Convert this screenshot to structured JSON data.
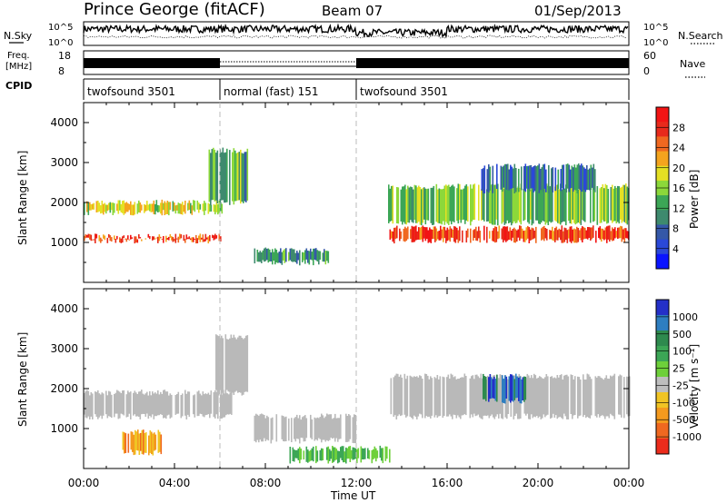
{
  "header": {
    "station": "Prince George (fitACF)",
    "beam": "Beam 07",
    "date": "01/Sep/2013"
  },
  "top_panels": {
    "nsky_label": "N.Sky",
    "nsky_ticks": [
      "10^5",
      "10^0"
    ],
    "nsearch_label": "N.Search",
    "nsearch_ticks": [
      "10^5",
      "10^0"
    ],
    "freq_label_line1": "Freq.",
    "freq_label_line2": "[MHz]",
    "freq_ticks": [
      "18",
      "8"
    ],
    "nave_label": "Nave",
    "nave_ticks": [
      "60",
      "0"
    ],
    "cpid_label": "CPID",
    "cpid_segments": [
      {
        "label": "twofsound 3501",
        "start_h": 0,
        "end_h": 6
      },
      {
        "label": "normal (fast) 151",
        "start_h": 6,
        "end_h": 12
      },
      {
        "label": "twofsound 3501",
        "start_h": 12,
        "end_h": 24
      }
    ]
  },
  "chart_data": [
    {
      "type": "heatmap",
      "name": "power",
      "ylabel": "Slant Range [km]",
      "ylim": [
        0,
        4500
      ],
      "yticks": [
        "1000",
        "2000",
        "3000",
        "4000"
      ],
      "colorbar_label": "Power [dB]",
      "colorbar_ticks": [
        "28",
        "24",
        "20",
        "16",
        "12",
        "8",
        "4"
      ],
      "colors": [
        "#0a14ff",
        "#2a48d8",
        "#3558a8",
        "#3e8a6e",
        "#3ca656",
        "#8cd83a",
        "#e4e024",
        "#f4a41e",
        "#f06820",
        "#e82a1c",
        "#f21414"
      ],
      "bands": [
        {
          "start_h": 0.0,
          "end_h": 6.1,
          "range_start_km": 1050,
          "range_end_km": 1150,
          "level": 26
        },
        {
          "start_h": 0.0,
          "end_h": 6.1,
          "range_start_km": 1750,
          "range_end_km": 2000,
          "level": 17
        },
        {
          "start_h": 5.5,
          "end_h": 7.2,
          "range_start_km": 2000,
          "range_end_km": 3300,
          "level": 12
        },
        {
          "start_h": 7.5,
          "end_h": 10.8,
          "range_start_km": 500,
          "range_end_km": 800,
          "level": 10
        },
        {
          "start_h": 13.4,
          "end_h": 24.0,
          "range_start_km": 1050,
          "range_end_km": 1350,
          "level": 26
        },
        {
          "start_h": 13.4,
          "end_h": 24.0,
          "range_start_km": 1500,
          "range_end_km": 2400,
          "level": 14
        },
        {
          "start_h": 17.5,
          "end_h": 22.5,
          "range_start_km": 2300,
          "range_end_km": 2900,
          "level": 8
        }
      ]
    },
    {
      "type": "heatmap",
      "name": "velocity",
      "ylabel": "Slant Range [km]",
      "ylim": [
        0,
        4500
      ],
      "yticks": [
        "1000",
        "2000",
        "3000",
        "4000"
      ],
      "xlabel": "Time UT",
      "xticks": [
        "00:00",
        "04:00",
        "08:00",
        "12:00",
        "16:00",
        "20:00",
        "00:00"
      ],
      "xlim_hours": [
        0,
        24
      ],
      "colorbar_label": "Velocity [m s⁻¹]",
      "colorbar_ticks": [
        "1000",
        "500",
        "100",
        "25",
        "-25",
        "-100",
        "-500",
        "-1000"
      ],
      "colors": [
        "#2430c8",
        "#2e7ec0",
        "#2e8a4e",
        "#3ca656",
        "#6ed03a",
        "#bebebe",
        "#f0c424",
        "#f49a1e",
        "#f06820",
        "#ec2c1c"
      ],
      "bands": [
        {
          "start_h": 0.0,
          "end_h": 6.5,
          "range_start_km": 1300,
          "range_end_km": 1900,
          "level": "ground"
        },
        {
          "start_h": 5.8,
          "end_h": 7.2,
          "range_start_km": 1900,
          "range_end_km": 3300,
          "level": "ground"
        },
        {
          "start_h": 1.7,
          "end_h": 3.4,
          "range_start_km": 400,
          "range_end_km": 900,
          "level": -300
        },
        {
          "start_h": 7.5,
          "end_h": 12.0,
          "range_start_km": 700,
          "range_end_km": 1300,
          "level": "ground"
        },
        {
          "start_h": 9.0,
          "end_h": 13.5,
          "range_start_km": 200,
          "range_end_km": 500,
          "level": 60
        },
        {
          "start_h": 13.5,
          "end_h": 24.0,
          "range_start_km": 1300,
          "range_end_km": 2300,
          "level": "ground"
        },
        {
          "start_h": 17.5,
          "end_h": 19.5,
          "range_start_km": 1700,
          "range_end_km": 2300,
          "level": 300
        }
      ]
    }
  ]
}
